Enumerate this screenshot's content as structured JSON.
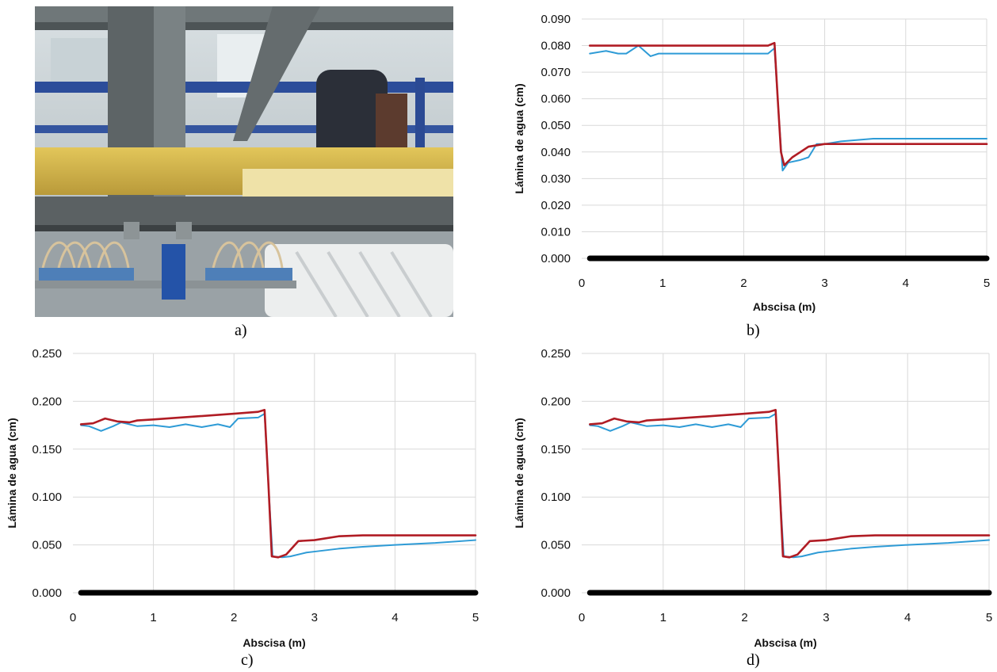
{
  "panels": {
    "a": {
      "label": "a)"
    },
    "b": {
      "label": "b)"
    },
    "c": {
      "label": "c)"
    },
    "d": {
      "label": "d)"
    }
  },
  "photo": {
    "description_icon": "laboratory-flume-photo-icon"
  },
  "colors": {
    "measured": "#2e9bd6",
    "simulated": "#b01c24",
    "baseline": "#000000",
    "grid": "#d9d9d9"
  },
  "chart_data": [
    {
      "panel": "b",
      "type": "line",
      "xlabel": "Abscisa (m)",
      "ylabel": "Lámina de agua (cm)",
      "xlim": [
        0,
        5
      ],
      "ylim": [
        0,
        0.09
      ],
      "xticks": [
        "0",
        "1",
        "2",
        "3",
        "4",
        "5"
      ],
      "yticks": [
        "0.000",
        "0.010",
        "0.020",
        "0.030",
        "0.040",
        "0.050",
        "0.060",
        "0.070",
        "0.080",
        "0.090"
      ],
      "grid": true,
      "series": [
        {
          "key": "measured",
          "x": [
            0.1,
            0.3,
            0.45,
            0.55,
            0.7,
            0.85,
            0.95,
            1.2,
            1.6,
            2.0,
            2.3,
            2.38,
            2.43,
            2.48,
            2.55,
            2.7,
            2.8,
            2.9,
            3.0,
            3.2,
            3.6,
            4.0,
            5.0
          ],
          "y": [
            0.077,
            0.078,
            0.077,
            0.077,
            0.08,
            0.076,
            0.077,
            0.077,
            0.077,
            0.077,
            0.077,
            0.079,
            0.055,
            0.033,
            0.036,
            0.037,
            0.038,
            0.043,
            0.043,
            0.044,
            0.045,
            0.045,
            0.045
          ]
        },
        {
          "key": "simulated",
          "x": [
            0.1,
            0.5,
            1.0,
            1.5,
            2.0,
            2.3,
            2.38,
            2.42,
            2.46,
            2.5,
            2.6,
            2.7,
            2.8,
            3.0,
            3.5,
            4.0,
            5.0
          ],
          "y": [
            0.08,
            0.08,
            0.08,
            0.08,
            0.08,
            0.08,
            0.081,
            0.06,
            0.04,
            0.035,
            0.038,
            0.04,
            0.042,
            0.043,
            0.043,
            0.043,
            0.043
          ]
        },
        {
          "key": "baseline",
          "x": [
            0.1,
            5.0
          ],
          "y": [
            0,
            0
          ]
        }
      ]
    },
    {
      "panel": "c",
      "type": "line",
      "xlabel": "Abscisa (m)",
      "ylabel": "Lámina de agua (cm)",
      "xlim": [
        0,
        5
      ],
      "ylim": [
        0,
        0.25
      ],
      "xticks": [
        "0",
        "1",
        "2",
        "3",
        "4",
        "5"
      ],
      "yticks": [
        "0.000",
        "0.050",
        "0.100",
        "0.150",
        "0.200",
        "0.250"
      ],
      "grid": true,
      "series": [
        {
          "key": "measured",
          "x": [
            0.1,
            0.2,
            0.35,
            0.5,
            0.6,
            0.8,
            1.0,
            1.2,
            1.4,
            1.6,
            1.8,
            1.95,
            2.05,
            2.3,
            2.38,
            2.43,
            2.48,
            2.6,
            2.7,
            2.9,
            3.0,
            3.3,
            3.6,
            4.0,
            4.5,
            5.0
          ],
          "y": [
            0.175,
            0.174,
            0.169,
            0.174,
            0.178,
            0.174,
            0.175,
            0.173,
            0.176,
            0.173,
            0.176,
            0.173,
            0.182,
            0.183,
            0.187,
            0.11,
            0.038,
            0.037,
            0.038,
            0.042,
            0.043,
            0.046,
            0.048,
            0.05,
            0.052,
            0.055
          ]
        },
        {
          "key": "simulated",
          "x": [
            0.1,
            0.25,
            0.4,
            0.55,
            0.7,
            0.8,
            1.0,
            1.5,
            2.0,
            2.3,
            2.38,
            2.43,
            2.47,
            2.55,
            2.65,
            2.8,
            3.0,
            3.3,
            3.6,
            4.0,
            5.0
          ],
          "y": [
            0.176,
            0.177,
            0.182,
            0.179,
            0.178,
            0.18,
            0.181,
            0.184,
            0.187,
            0.189,
            0.191,
            0.11,
            0.038,
            0.037,
            0.04,
            0.054,
            0.055,
            0.059,
            0.06,
            0.06,
            0.06
          ]
        },
        {
          "key": "baseline",
          "x": [
            0.1,
            5.0
          ],
          "y": [
            0,
            0
          ]
        }
      ]
    },
    {
      "panel": "d",
      "type": "line",
      "xlabel": "Abscisa (m)",
      "ylabel": "Lámina de agua (cm)",
      "xlim": [
        0,
        5
      ],
      "ylim": [
        0,
        0.25
      ],
      "xticks": [
        "0",
        "1",
        "2",
        "3",
        "4",
        "5"
      ],
      "yticks": [
        "0.000",
        "0.050",
        "0.100",
        "0.150",
        "0.200",
        "0.250"
      ],
      "grid": true,
      "series": [
        {
          "key": "measured",
          "x": [
            0.1,
            0.2,
            0.35,
            0.5,
            0.6,
            0.8,
            1.0,
            1.2,
            1.4,
            1.6,
            1.8,
            1.95,
            2.05,
            2.3,
            2.38,
            2.43,
            2.48,
            2.6,
            2.7,
            2.9,
            3.0,
            3.3,
            3.6,
            4.0,
            4.5,
            5.0
          ],
          "y": [
            0.175,
            0.174,
            0.169,
            0.174,
            0.178,
            0.174,
            0.175,
            0.173,
            0.176,
            0.173,
            0.176,
            0.173,
            0.182,
            0.183,
            0.187,
            0.11,
            0.038,
            0.037,
            0.038,
            0.042,
            0.043,
            0.046,
            0.048,
            0.05,
            0.052,
            0.055
          ]
        },
        {
          "key": "simulated",
          "x": [
            0.1,
            0.25,
            0.4,
            0.55,
            0.7,
            0.8,
            1.0,
            1.5,
            2.0,
            2.3,
            2.38,
            2.43,
            2.47,
            2.55,
            2.65,
            2.8,
            3.0,
            3.3,
            3.6,
            4.0,
            5.0
          ],
          "y": [
            0.176,
            0.177,
            0.182,
            0.179,
            0.178,
            0.18,
            0.181,
            0.184,
            0.187,
            0.189,
            0.191,
            0.11,
            0.038,
            0.037,
            0.04,
            0.054,
            0.055,
            0.059,
            0.06,
            0.06,
            0.06
          ]
        },
        {
          "key": "baseline",
          "x": [
            0.1,
            5.0
          ],
          "y": [
            0,
            0
          ]
        }
      ]
    }
  ]
}
